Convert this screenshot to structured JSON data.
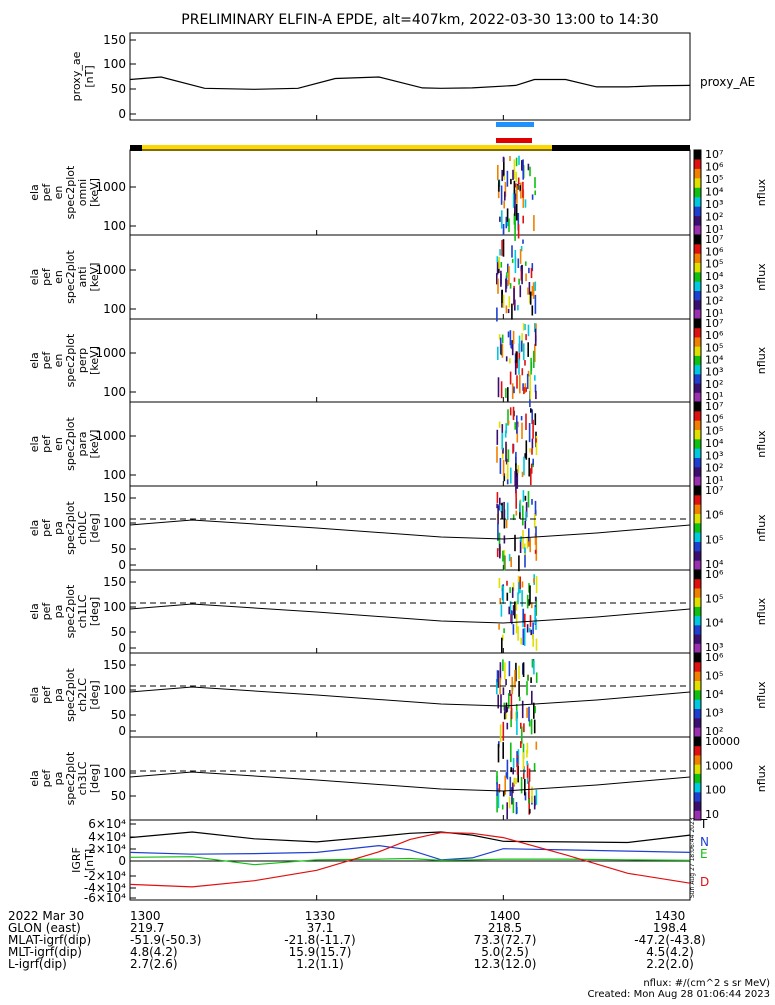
{
  "title": "PRELIMINARY ELFIN-A EPDE, alt=407km, 2022-03-30 13:00 to 14:30",
  "colors": {
    "bar_yellow": "#ffd700",
    "bar_black": "#000000",
    "bar_red": "#e00000",
    "bar_blue": "#1e90ff",
    "trace_black": "#000000",
    "trace_blue": "#1f3fd0",
    "trace_green": "#10c010",
    "trace_red": "#e01010"
  },
  "colorbar_label": "nflux",
  "panels": [
    {
      "id": "proxy_ae",
      "ylabel": [
        "proxy_ae",
        "[nT]"
      ],
      "ticks": [
        "150",
        "100",
        "50",
        "0"
      ],
      "right_label": "proxy_AE"
    },
    {
      "id": "omni",
      "ylabel": [
        "ela",
        "pef",
        "en",
        "spec2plot",
        "omni",
        "[keV]"
      ],
      "ticks": [
        "1000",
        "100"
      ]
    },
    {
      "id": "anti",
      "ylabel": [
        "ela",
        "pef",
        "en",
        "spec2plot",
        "anti",
        "[keV]"
      ],
      "ticks": [
        "1000",
        "100"
      ]
    },
    {
      "id": "perp",
      "ylabel": [
        "ela",
        "pef",
        "en",
        "spec2plot",
        "perp",
        "[keV]"
      ],
      "ticks": [
        "1000",
        "100"
      ]
    },
    {
      "id": "para",
      "ylabel": [
        "ela",
        "pef",
        "en",
        "spec2plot",
        "para",
        "[keV]"
      ],
      "ticks": [
        "1000",
        "100"
      ]
    },
    {
      "id": "ch0LC",
      "ylabel": [
        "ela",
        "pef",
        "pa",
        "spec2plot",
        "ch0LC",
        "[deg]"
      ],
      "ticks": [
        "150",
        "100",
        "50",
        "0"
      ]
    },
    {
      "id": "ch1LC",
      "ylabel": [
        "ela",
        "pef",
        "pa",
        "spec2plot",
        "ch1LC",
        "[deg]"
      ],
      "ticks": [
        "150",
        "100",
        "50",
        "0"
      ]
    },
    {
      "id": "ch2LC",
      "ylabel": [
        "ela",
        "pef",
        "pa",
        "spec2plot",
        "ch2LC",
        "[deg]"
      ],
      "ticks": [
        "150",
        "100",
        "50",
        "0"
      ]
    },
    {
      "id": "ch3LC",
      "ylabel": [
        "ela",
        "pef",
        "pa",
        "spec2plot",
        "ch3LC",
        "[deg]"
      ],
      "ticks": [
        "100",
        "50"
      ]
    },
    {
      "id": "igrf",
      "ylabel": [
        "IGRF",
        "[nT]"
      ],
      "ticks": [
        "6×10⁴",
        "4×10⁴",
        "2×10⁴",
        "0",
        "-2×10⁴",
        "-4×10⁴",
        "-6×10⁴"
      ]
    }
  ],
  "colorbars": [
    {
      "labels": [
        "10⁷",
        "10⁶",
        "10⁵",
        "10⁴",
        "10³",
        "10²",
        "10¹"
      ]
    },
    {
      "labels": [
        "10⁷",
        "10⁶",
        "10⁵",
        "10⁴",
        "10³",
        "10²",
        "10¹"
      ]
    },
    {
      "labels": [
        "10⁷",
        "10⁶",
        "10⁵",
        "10⁴",
        "10³",
        "10²",
        "10¹"
      ]
    },
    {
      "labels": [
        "10⁷",
        "10⁶",
        "10⁵",
        "10⁴",
        "10³",
        "10²",
        "10¹"
      ]
    },
    {
      "labels": [
        "10⁷",
        "10⁶",
        "10⁵",
        "10⁴"
      ]
    },
    {
      "labels": [
        "10⁶",
        "10⁵",
        "10⁴",
        "10³"
      ]
    },
    {
      "labels": [
        "10⁶",
        "10⁵",
        "10⁴",
        "10³",
        "10²"
      ]
    },
    {
      "labels": [
        "10000",
        "1000",
        "100",
        "10"
      ]
    }
  ],
  "igrf_legend": [
    {
      "label": "T",
      "color": "#000000"
    },
    {
      "label": "N",
      "color": "#1f3fd0"
    },
    {
      "label": "E",
      "color": "#10c010"
    },
    {
      "label": "D",
      "color": "#e01010"
    }
  ],
  "chart_data": {
    "type": "line",
    "x_ticks": [
      "1300",
      "1330",
      "1400",
      "1430"
    ],
    "proxy_ae": {
      "name": "proxy_AE",
      "time_min": [
        0,
        5,
        12,
        20,
        27,
        33,
        40,
        47,
        50,
        55,
        62,
        65,
        70,
        75,
        80,
        84,
        90
      ],
      "values_nT": [
        70,
        75,
        52,
        50,
        52,
        72,
        75,
        53,
        52,
        53,
        58,
        70,
        70,
        55,
        55,
        57,
        58
      ]
    },
    "igrf": {
      "time_min": [
        0,
        10,
        20,
        30,
        40,
        45,
        50,
        55,
        60,
        70,
        80,
        90
      ],
      "T": [
        38000,
        47000,
        36000,
        31000,
        40000,
        45000,
        47000,
        42000,
        32000,
        31000,
        30000,
        42000
      ],
      "N": [
        14000,
        11000,
        12000,
        14000,
        25000,
        18000,
        2000,
        5000,
        20000,
        18000,
        16000,
        14000
      ],
      "E": [
        6000,
        7000,
        -6000,
        2000,
        3000,
        4000,
        1000,
        2000,
        3000,
        3000,
        2000,
        1000
      ],
      "D": [
        -38000,
        -42000,
        -32000,
        -15000,
        15000,
        35000,
        46000,
        45000,
        38000,
        10000,
        -20000,
        -36000
      ]
    }
  },
  "footer": {
    "rows": [
      {
        "label": "2022 Mar 30",
        "values": [
          "1300",
          "1330",
          "1400",
          "1430"
        ]
      },
      {
        "label": "GLON (east)",
        "values": [
          "219.7",
          "37.1",
          "218.5",
          "198.4"
        ]
      },
      {
        "label": "MLAT-igrf(dip)",
        "values": [
          "-51.9(-50.3)",
          "-21.8(-11.7)",
          "73.3(72.7)",
          "-47.2(-43.8)"
        ]
      },
      {
        "label": "MLT-igrf(dip)",
        "values": [
          "4.8(4.2)",
          "15.9(15.7)",
          "5.0(2.5)",
          "4.5(4.2)"
        ]
      },
      {
        "label": "L-igrf(dip)",
        "values": [
          "2.7(2.6)",
          "1.2(1.1)",
          "12.3(12.0)",
          "2.2(2.0)"
        ]
      }
    ],
    "units_note": "nflux: #/(cm^2 s sr MeV)",
    "created": "Created: Mon Aug 28 01:06:44 2023",
    "side_stamp": "Sun Aug 27 18:06:44 2023"
  }
}
